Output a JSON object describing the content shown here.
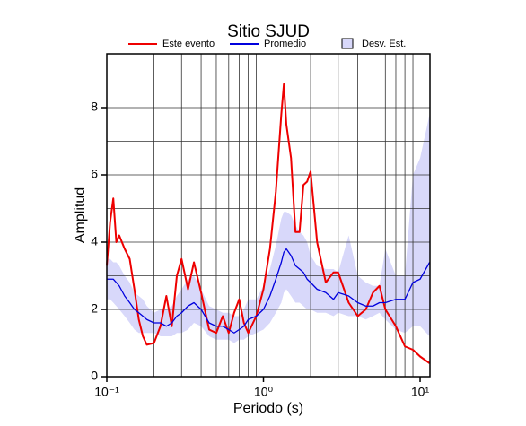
{
  "chart_data": {
    "type": "line",
    "title": "Sitio SJUD",
    "xlabel": "Periodo (s)",
    "ylabel": "Amplitud",
    "xscale": "log",
    "xlim": [
      0.1,
      11.56
    ],
    "ylim": [
      0,
      9.6
    ],
    "xticks": [
      {
        "value": 0.1,
        "label": "10⁻¹"
      },
      {
        "value": 1,
        "label": "10⁰"
      },
      {
        "value": 10,
        "label": "10¹"
      }
    ],
    "yticks": [
      0,
      2,
      4,
      6,
      8
    ],
    "xgrid": [
      0.2,
      0.3,
      0.4,
      0.5,
      0.6,
      0.7,
      0.8,
      0.9,
      2,
      3,
      4,
      5,
      6,
      7,
      8,
      9
    ],
    "ygrid": [
      1,
      2,
      3,
      4,
      5,
      6,
      7,
      8,
      9
    ],
    "x": [
      0.1,
      0.105,
      0.11,
      0.115,
      0.12,
      0.13,
      0.14,
      0.15,
      0.16,
      0.17,
      0.18,
      0.2,
      0.22,
      0.24,
      0.26,
      0.28,
      0.3,
      0.33,
      0.36,
      0.4,
      0.45,
      0.5,
      0.55,
      0.6,
      0.65,
      0.7,
      0.75,
      0.8,
      0.9,
      1.0,
      1.1,
      1.2,
      1.3,
      1.35,
      1.4,
      1.5,
      1.6,
      1.7,
      1.8,
      1.9,
      2.0,
      2.2,
      2.5,
      2.8,
      3.0,
      3.5,
      4.0,
      4.5,
      5.0,
      5.5,
      6.0,
      7.0,
      8.0,
      9.0,
      10,
      11.5
    ],
    "series": [
      {
        "name": "Este evento",
        "color": "#ee0000",
        "values": [
          3.3,
          4.6,
          5.3,
          4.0,
          4.2,
          3.8,
          3.5,
          2.6,
          1.7,
          1.2,
          0.95,
          1.0,
          1.5,
          2.4,
          1.5,
          3.0,
          3.5,
          2.6,
          3.4,
          2.5,
          1.4,
          1.3,
          1.8,
          1.3,
          1.9,
          2.3,
          1.6,
          1.3,
          1.8,
          2.6,
          3.8,
          5.5,
          7.8,
          8.7,
          7.5,
          6.5,
          4.3,
          4.3,
          5.7,
          5.8,
          6.1,
          4.0,
          2.8,
          3.1,
          3.1,
          2.2,
          1.8,
          2.0,
          2.5,
          2.7,
          2.0,
          1.5,
          0.9,
          0.8,
          0.6,
          0.4
        ]
      },
      {
        "name": "Promedio",
        "color": "#0000dd",
        "values": [
          2.9,
          2.9,
          2.9,
          2.8,
          2.7,
          2.4,
          2.2,
          2.0,
          1.9,
          1.8,
          1.7,
          1.6,
          1.6,
          1.5,
          1.6,
          1.8,
          1.9,
          2.1,
          2.2,
          2.0,
          1.6,
          1.5,
          1.5,
          1.4,
          1.3,
          1.4,
          1.5,
          1.7,
          1.8,
          2.0,
          2.4,
          2.9,
          3.4,
          3.7,
          3.8,
          3.6,
          3.3,
          3.2,
          3.1,
          2.9,
          2.8,
          2.6,
          2.5,
          2.3,
          2.5,
          2.4,
          2.2,
          2.1,
          2.1,
          2.2,
          2.2,
          2.3,
          2.3,
          2.8,
          2.9,
          3.4
        ]
      },
      {
        "name": "Desv. Est.",
        "color": "#d8d8fa",
        "kind": "band",
        "lower": [
          2.3,
          2.3,
          2.2,
          2.1,
          2.0,
          1.8,
          1.6,
          1.4,
          1.3,
          1.3,
          1.3,
          1.3,
          1.2,
          1.2,
          1.2,
          1.3,
          1.3,
          1.4,
          1.6,
          1.5,
          1.2,
          1.1,
          1.1,
          1.1,
          1.0,
          1.1,
          1.1,
          1.2,
          1.3,
          1.4,
          1.6,
          1.9,
          2.2,
          2.5,
          2.6,
          2.4,
          2.2,
          2.2,
          2.1,
          2.0,
          2.0,
          1.9,
          1.9,
          1.8,
          1.9,
          1.8,
          1.8,
          1.7,
          1.8,
          1.9,
          1.7,
          1.4,
          1.3,
          1.5,
          1.5,
          1.2
        ],
        "upper": [
          3.5,
          3.5,
          3.4,
          3.4,
          3.3,
          3.0,
          2.8,
          2.5,
          2.4,
          2.3,
          2.1,
          1.9,
          2.0,
          2.0,
          2.1,
          2.4,
          2.6,
          2.9,
          3.0,
          2.6,
          2.1,
          2.0,
          1.9,
          1.9,
          1.8,
          1.8,
          2.0,
          2.3,
          2.3,
          2.7,
          3.2,
          3.9,
          4.7,
          4.9,
          4.9,
          4.8,
          4.5,
          4.3,
          4.2,
          4.0,
          3.6,
          3.3,
          3.2,
          3.2,
          3.1,
          4.2,
          3.0,
          2.8,
          2.7,
          2.7,
          3.8,
          3.0,
          3.0,
          6.0,
          6.5,
          7.8
        ]
      }
    ]
  }
}
